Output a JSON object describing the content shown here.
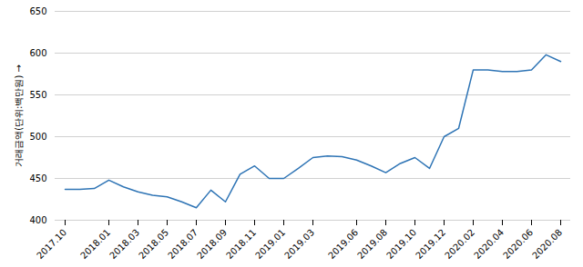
{
  "chart_data": {
    "type": "line",
    "categories": [
      "2017.10",
      null,
      null,
      "2018.01",
      null,
      "2018.03",
      null,
      "2018.05",
      null,
      "2018.07",
      null,
      "2018.09",
      null,
      "2018.11",
      null,
      "2019.01",
      null,
      "2019.03",
      null,
      null,
      "2019.06",
      null,
      "2019.08",
      null,
      "2019.10",
      null,
      "2019.12",
      null,
      "2020.02",
      null,
      "2020.04",
      null,
      "2020.06",
      null,
      "2020.08"
    ],
    "values": [
      437,
      437,
      438,
      448,
      440,
      434,
      430,
      428,
      422,
      415,
      436,
      422,
      455,
      465,
      450,
      450,
      462,
      475,
      477,
      476,
      472,
      465,
      457,
      468,
      475,
      462,
      500,
      510,
      580,
      580,
      578,
      578,
      580,
      598,
      590
    ],
    "color": "#2e74b5",
    "ylabel": "거래금액(단위:백만원)",
    "ylim": [
      400,
      650
    ],
    "yticks": [
      400,
      450,
      500,
      550,
      600,
      650
    ],
    "grid": true
  }
}
